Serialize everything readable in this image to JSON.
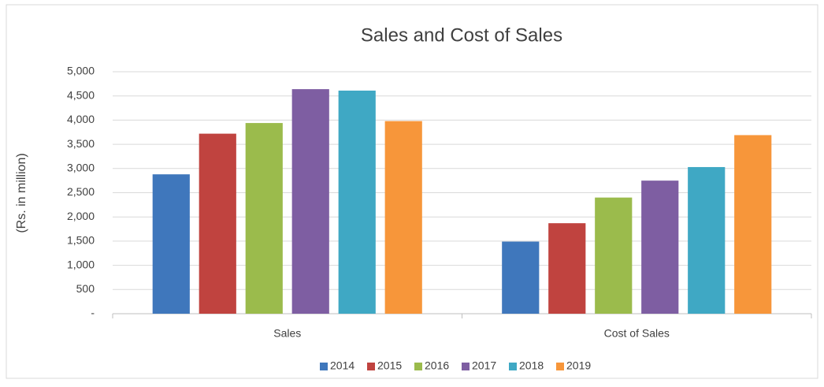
{
  "chart_data": {
    "type": "bar",
    "title": "Sales and Cost of Sales",
    "y_label": "(Rs. in million)",
    "categories": [
      "Sales",
      "Cost of Sales"
    ],
    "series": [
      {
        "name": "2014",
        "color": "#3f77bc",
        "values": [
          2880,
          1490
        ]
      },
      {
        "name": "2015",
        "color": "#c0433f",
        "values": [
          3720,
          1870
        ]
      },
      {
        "name": "2016",
        "color": "#9bbb4c",
        "values": [
          3940,
          2400
        ]
      },
      {
        "name": "2017",
        "color": "#7e5ea2",
        "values": [
          4640,
          2750
        ]
      },
      {
        "name": "2018",
        "color": "#3fa8c4",
        "values": [
          4610,
          3030
        ]
      },
      {
        "name": "2019",
        "color": "#f7963a",
        "values": [
          3980,
          3690
        ]
      }
    ],
    "ylim": [
      0,
      5000
    ],
    "yticks": [
      {
        "value": 0,
        "label": "-"
      },
      {
        "value": 500,
        "label": "500"
      },
      {
        "value": 1000,
        "label": "1,000"
      },
      {
        "value": 1500,
        "label": "1,500"
      },
      {
        "value": 2000,
        "label": "2,000"
      },
      {
        "value": 2500,
        "label": "2,500"
      },
      {
        "value": 3000,
        "label": "3,000"
      },
      {
        "value": 3500,
        "label": "3,500"
      },
      {
        "value": 4000,
        "label": "4,000"
      },
      {
        "value": 4500,
        "label": "4,500"
      },
      {
        "value": 5000,
        "label": "5,000"
      }
    ],
    "grid": true,
    "legend": "bottom"
  }
}
